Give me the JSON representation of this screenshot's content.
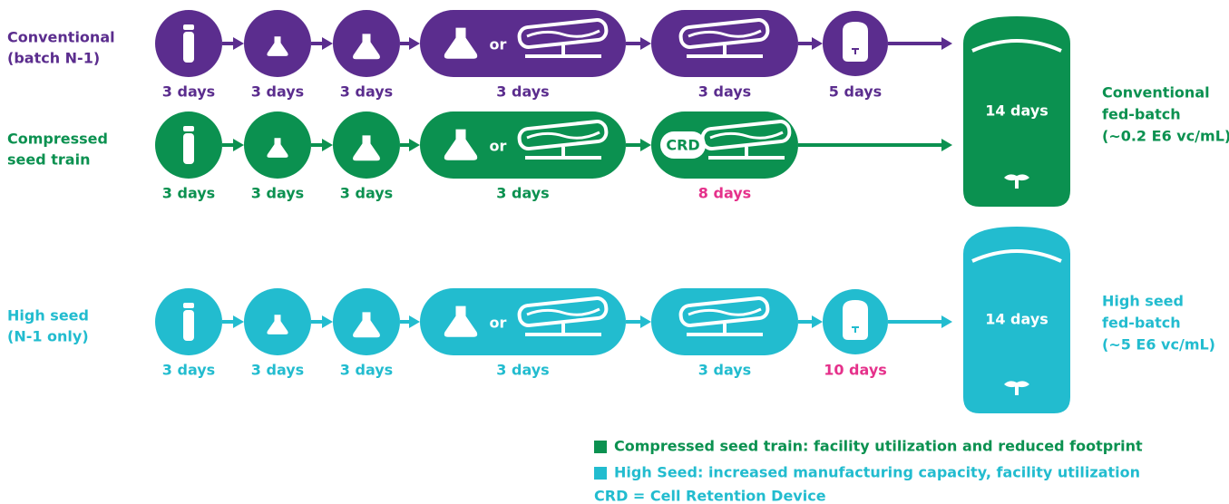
{
  "rows": [
    {
      "label": [
        "Conventional",
        "(batch N-1)"
      ],
      "color": "#5b2d8e",
      "steps": [
        {
          "duration": "3 days"
        },
        {
          "duration": "3 days"
        },
        {
          "duration": "3 days"
        },
        {
          "duration": "3 days",
          "connector": "or"
        },
        {
          "duration": "3 days"
        },
        {
          "duration": "5 days"
        }
      ]
    },
    {
      "label": [
        "Compressed",
        "seed train"
      ],
      "color": "#0b9150",
      "steps": [
        {
          "duration": "3 days"
        },
        {
          "duration": "3 days"
        },
        {
          "duration": "3 days"
        },
        {
          "duration": "3 days",
          "connector": "or"
        },
        {
          "duration": "8 days",
          "device": "CRD",
          "duration_color": "#e5318b"
        }
      ]
    },
    {
      "label": [
        "High seed",
        "(N-1 only)"
      ],
      "color": "#22bccf",
      "steps": [
        {
          "duration": "3 days"
        },
        {
          "duration": "3 days"
        },
        {
          "duration": "3 days"
        },
        {
          "duration": "3 days",
          "connector": "or"
        },
        {
          "duration": "3 days"
        },
        {
          "duration": "10 days",
          "duration_color": "#e5318b"
        }
      ]
    }
  ],
  "tanks": [
    {
      "label": "14 days",
      "color": "#0b9150",
      "outcome": [
        "Conventional",
        "fed-batch",
        "(~0.2 E6 vc/mL)"
      ]
    },
    {
      "label": "14 days",
      "color": "#22bccf",
      "outcome": [
        "High seed",
        "fed-batch",
        "(~5 E6 vc/mL)"
      ]
    }
  ],
  "legend": [
    {
      "text": "Compressed seed train: facility utilization and reduced footprint",
      "color": "#0b9150"
    },
    {
      "text": "High Seed: increased manufacturing capacity, facility utilization",
      "color": "#22bccf"
    }
  ],
  "note": "CRD = Cell Retention Device"
}
